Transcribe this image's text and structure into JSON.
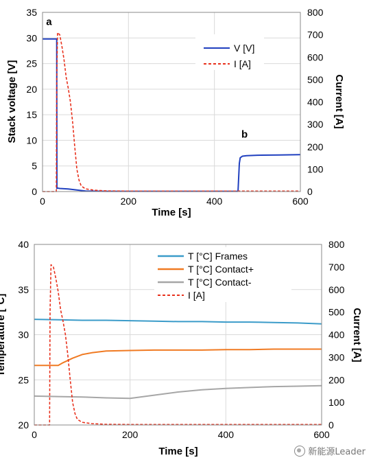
{
  "chart_data": [
    {
      "type": "line",
      "xlabel": "Time [s]",
      "ylabel": "Stack voltage [V]",
      "y2label": "Current [A]",
      "xlim": [
        0,
        600
      ],
      "ylim": [
        0,
        35
      ],
      "y2lim": [
        0,
        800
      ],
      "xticks": [
        0,
        200,
        400,
        600
      ],
      "yticks": [
        0,
        5,
        10,
        15,
        20,
        25,
        30,
        35
      ],
      "y2ticks": [
        0,
        100,
        200,
        300,
        400,
        500,
        600,
        700,
        800
      ],
      "grid": true,
      "legend_position": "top-right",
      "annotations": [
        {
          "text": "a",
          "x": 15,
          "y": 32.5
        },
        {
          "text": "b",
          "x": 470,
          "y": 10.5
        }
      ],
      "series": [
        {
          "name": "V [V]",
          "axis": "left",
          "color": "#1f3fbf",
          "style": "solid",
          "x": [
            0,
            33,
            33.5,
            34,
            40,
            60,
            80,
            100,
            150,
            200,
            300,
            400,
            455,
            458,
            460,
            465,
            475,
            500,
            550,
            600
          ],
          "y": [
            29.8,
            29.8,
            0.6,
            0.7,
            0.6,
            0.5,
            0.3,
            0.1,
            0.05,
            0.05,
            0.05,
            0.05,
            0.05,
            5.5,
            6.6,
            6.9,
            7.0,
            7.1,
            7.15,
            7.2
          ]
        },
        {
          "name": "I [A]",
          "axis": "right",
          "color": "#e8301c",
          "style": "dashed",
          "x": [
            0,
            32,
            33,
            35,
            40,
            45,
            50,
            55,
            60,
            65,
            70,
            75,
            80,
            85,
            90,
            100,
            120,
            150,
            200,
            300,
            400,
            500,
            600
          ],
          "y": [
            0,
            0,
            500,
            710,
            700,
            650,
            590,
            510,
            460,
            400,
            310,
            200,
            100,
            50,
            25,
            12,
            6,
            3,
            2,
            2,
            2,
            2,
            2
          ]
        }
      ]
    },
    {
      "type": "line",
      "xlabel": "Time [s]",
      "ylabel": "Temperature [°C]",
      "y2label": "Current [A]",
      "xlim": [
        0,
        600
      ],
      "ylim": [
        20,
        40
      ],
      "y2lim": [
        0,
        800
      ],
      "xticks": [
        0,
        200,
        400,
        600
      ],
      "yticks": [
        20,
        25,
        30,
        35,
        40
      ],
      "y2ticks": [
        0,
        100,
        200,
        300,
        400,
        500,
        600,
        700,
        800
      ],
      "grid": true,
      "legend_position": "top-right",
      "series": [
        {
          "name": "T [°C] Frames",
          "axis": "left",
          "color": "#3a9bc9",
          "style": "solid",
          "x": [
            0,
            50,
            100,
            150,
            200,
            250,
            300,
            350,
            400,
            450,
            500,
            550,
            600
          ],
          "y": [
            31.7,
            31.65,
            31.6,
            31.6,
            31.55,
            31.5,
            31.45,
            31.45,
            31.4,
            31.4,
            31.35,
            31.3,
            31.2
          ]
        },
        {
          "name": "T [°C] Contact+",
          "axis": "left",
          "color": "#f07a22",
          "style": "solid",
          "x": [
            0,
            50,
            60,
            80,
            100,
            120,
            150,
            200,
            250,
            300,
            350,
            400,
            450,
            500,
            550,
            600
          ],
          "y": [
            26.6,
            26.6,
            26.9,
            27.4,
            27.8,
            28.0,
            28.2,
            28.25,
            28.3,
            28.3,
            28.3,
            28.35,
            28.35,
            28.4,
            28.4,
            28.4
          ]
        },
        {
          "name": "T [°C] Contact-",
          "axis": "left",
          "color": "#a6a6a6",
          "style": "solid",
          "x": [
            0,
            50,
            100,
            150,
            200,
            250,
            300,
            350,
            400,
            450,
            500,
            550,
            600
          ],
          "y": [
            23.2,
            23.15,
            23.1,
            23.0,
            22.95,
            23.3,
            23.65,
            23.9,
            24.05,
            24.15,
            24.25,
            24.3,
            24.35
          ]
        },
        {
          "name": "I [A]",
          "axis": "right",
          "color": "#e8301c",
          "style": "dashed",
          "x": [
            0,
            32,
            33,
            35,
            40,
            45,
            50,
            55,
            60,
            65,
            70,
            75,
            80,
            85,
            90,
            100,
            120,
            150,
            200,
            300,
            400,
            500,
            600
          ],
          "y": [
            0,
            0,
            500,
            710,
            700,
            650,
            590,
            510,
            460,
            400,
            310,
            200,
            100,
            50,
            25,
            12,
            6,
            3,
            2,
            2,
            2,
            2,
            2
          ]
        }
      ]
    }
  ],
  "watermark": {
    "text": "新能源Leader",
    "icon": "wechat-icon"
  }
}
